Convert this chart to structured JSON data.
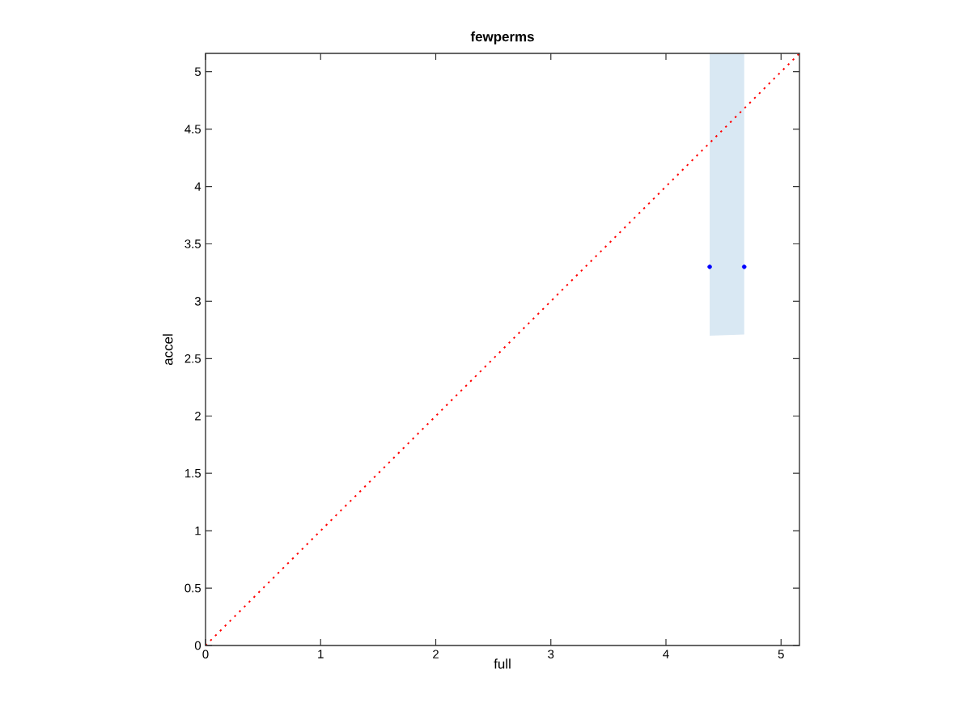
{
  "chart_data": {
    "type": "scatter",
    "title": "fewperms",
    "xlabel": "full",
    "ylabel": "accel",
    "xlim": [
      0,
      5.16
    ],
    "ylim": [
      0,
      5.16
    ],
    "xticks": [
      0,
      1,
      2,
      3,
      4,
      5
    ],
    "yticks": [
      0,
      0.5,
      1,
      1.5,
      2,
      2.5,
      3,
      3.5,
      4,
      4.5,
      5
    ],
    "grid": false,
    "series": [
      {
        "marker": "circle",
        "color": "#0000ff",
        "x": [
          4.38,
          4.68
        ],
        "values": [
          3.3,
          3.3
        ],
        "lower": [
          2.7,
          2.71
        ],
        "upper": [
          5.16,
          5.16
        ]
      },
      {
        "type": "line",
        "color": "#ff0000",
        "line_style": "dotted",
        "marker": "none",
        "x": [
          0,
          5.16
        ],
        "values": [
          0,
          5.16
        ]
      }
    ]
  }
}
